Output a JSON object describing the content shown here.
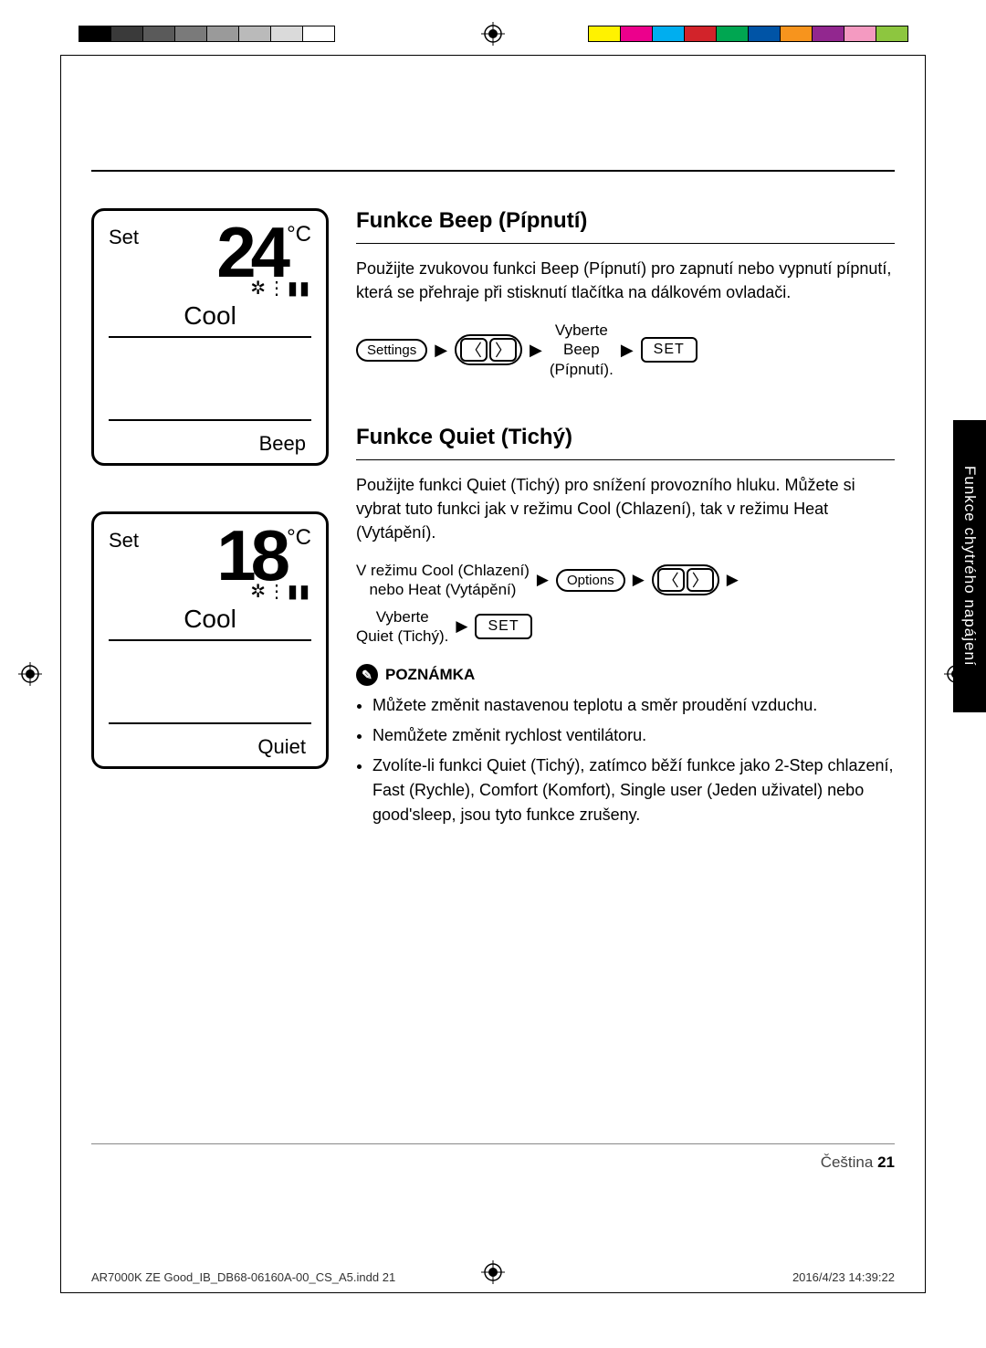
{
  "printbars": {
    "left": [
      "#000000",
      "#3a3a3a",
      "#5a5a5a",
      "#7a7a7a",
      "#9a9a9a",
      "#bababa",
      "#dadada",
      "#ffffff"
    ],
    "right": [
      "#fff200",
      "#ec008c",
      "#00aeef",
      "#d2232a",
      "#00a651",
      "#0054a6",
      "#f7941d",
      "#92278f",
      "#f49ac1",
      "#8dc63f"
    ]
  },
  "display1": {
    "set_label": "Set",
    "temp": "24",
    "unit": "°C",
    "mode": "Cool",
    "func": "Beep"
  },
  "display2": {
    "set_label": "Set",
    "temp": "18",
    "unit": "°C",
    "mode": "Cool",
    "func": "Quiet"
  },
  "beep": {
    "heading": "Funkce Beep (Pípnutí)",
    "body": "Použijte zvukovou funkci Beep (Pípnutí) pro zapnutí nebo vypnutí pípnutí, která se přehraje při stisknutí tlačítka na dálkovém ovladači.",
    "btn_settings": "Settings",
    "nav_prev": "〈",
    "nav_next": "〉",
    "select_text": "Vyberte\nBeep\n(Pípnutí).",
    "btn_set": "SET"
  },
  "quiet": {
    "heading": "Funkce Quiet (Tichý)",
    "body": "Použijte funkci Quiet (Tichý) pro snížení provozního hluku. Můžete si vybrat tuto funkci jak v režimu Cool (Chlazení), tak v režimu Heat (Vytápění).",
    "mode_text": "V režimu Cool (Chlazení)\nnebo Heat (Vytápění)",
    "btn_options": "Options",
    "nav_prev": "〈",
    "nav_next": "〉",
    "select_text": "Vyberte\nQuiet (Tichý).",
    "btn_set": "SET"
  },
  "note": {
    "label": "POZNÁMKA",
    "items": [
      "Můžete změnit nastavenou teplotu a směr proudění vzduchu.",
      "Nemůžete změnit rychlost ventilátoru.",
      "Zvolíte-li funkci Quiet (Tichý), zatímco běží funkce jako 2-Step chlazení, Fast (Rychle), Comfort (Komfort), Single user (Jeden uživatel) nebo good'sleep, jsou tyto funkce zrušeny."
    ]
  },
  "side_tab": "Funkce chytrého napájení",
  "footer": {
    "lang": "Čeština",
    "page": "21",
    "file": "AR7000K ZE Good_IB_DB68-06160A-00_CS_A5.indd   21",
    "timestamp": "2016/4/23   14:39:22"
  },
  "arrow_glyph": "▶"
}
